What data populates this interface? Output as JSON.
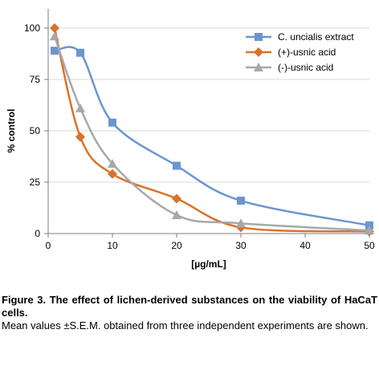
{
  "chart_data": {
    "type": "line",
    "title": "",
    "xlabel": "[µg/mL]",
    "ylabel": "% control",
    "xlim": [
      0,
      50
    ],
    "ylim": [
      0,
      100
    ],
    "x_ticks": [
      0,
      10,
      20,
      30,
      40,
      50
    ],
    "y_ticks": [
      0,
      25,
      50,
      75,
      100
    ],
    "grid": "horizontal",
    "legend_position": "top-right",
    "series": [
      {
        "name": "C. uncialis extract",
        "color": "#6b96d0",
        "marker": "square",
        "x": [
          1,
          5,
          10,
          20,
          30,
          50
        ],
        "y": [
          89,
          88,
          54,
          33,
          16,
          4
        ]
      },
      {
        "name": "(+)-usnic acid",
        "color": "#d9722a",
        "marker": "diamond",
        "x": [
          1,
          5,
          10,
          20,
          30,
          50
        ],
        "y": [
          100,
          47,
          29,
          17,
          3,
          1
        ]
      },
      {
        "name": "(-)-usnic acid",
        "color": "#a8a8a8",
        "marker": "triangle",
        "x": [
          1,
          5,
          10,
          20,
          30,
          50
        ],
        "y": [
          96,
          61,
          34,
          9,
          5,
          1.5
        ]
      }
    ]
  },
  "caption": {
    "title": "Figure 3. The effect of lichen-derived substances on the viability of HaCaT cells.",
    "body": "Mean values ±S.E.M. obtained from three independent experiments are shown."
  }
}
